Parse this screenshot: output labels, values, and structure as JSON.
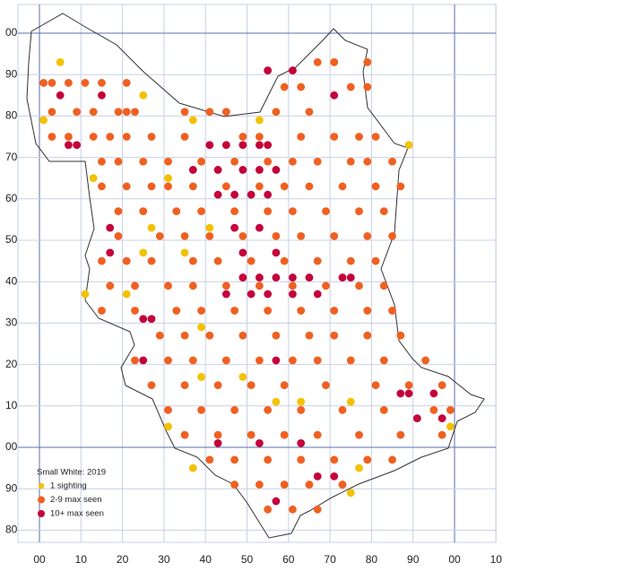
{
  "chart_data": {
    "type": "scatter",
    "legend_title": "Small White:  2019",
    "xlim": [
      -5,
      110
    ],
    "ylim": [
      -23,
      108
    ],
    "xticks": [
      {
        "value": 0,
        "label": "00"
      },
      10,
      20,
      30,
      40,
      50,
      60,
      70,
      80,
      90,
      {
        "value": 100,
        "label": "00"
      },
      {
        "value": 110,
        "label": "10"
      }
    ],
    "yticks": [
      {
        "value": 100,
        "label": "00"
      },
      90,
      80,
      70,
      60,
      50,
      40,
      30,
      20,
      10,
      {
        "value": 0,
        "label": "00"
      },
      {
        "value": -10,
        "label": "90"
      },
      {
        "value": -20,
        "label": "80"
      }
    ],
    "grid": true,
    "series": [
      {
        "name": "1 sighting",
        "color": "#f2c200",
        "points": [
          [
            4,
            92
          ],
          [
            0,
            78
          ],
          [
            36,
            78
          ],
          [
            52,
            78
          ],
          [
            88,
            72
          ],
          [
            12,
            64
          ],
          [
            30,
            64
          ],
          [
            26,
            52
          ],
          [
            40,
            52
          ],
          [
            24,
            46
          ],
          [
            34,
            46
          ],
          [
            10,
            36
          ],
          [
            20,
            36
          ],
          [
            38,
            28
          ],
          [
            38,
            16
          ],
          [
            48,
            16
          ],
          [
            56,
            10
          ],
          [
            62,
            10
          ],
          [
            74,
            10
          ],
          [
            30,
            4
          ],
          [
            98,
            4
          ],
          [
            36,
            -6
          ],
          [
            76,
            -6
          ],
          [
            74,
            -12
          ],
          [
            70,
            92
          ],
          [
            24,
            84
          ]
        ]
      },
      {
        "name": "2-9 max seen",
        "color": "#f06020",
        "points": [
          [
            0,
            87
          ],
          [
            2,
            87
          ],
          [
            6,
            87
          ],
          [
            10,
            87
          ],
          [
            14,
            87
          ],
          [
            20,
            87
          ],
          [
            2,
            80
          ],
          [
            8,
            80
          ],
          [
            12,
            80
          ],
          [
            18,
            80
          ],
          [
            20,
            80
          ],
          [
            22,
            80
          ],
          [
            34,
            80
          ],
          [
            40,
            80
          ],
          [
            44,
            80
          ],
          [
            56,
            80
          ],
          [
            64,
            80
          ],
          [
            2,
            74
          ],
          [
            6,
            74
          ],
          [
            12,
            74
          ],
          [
            16,
            74
          ],
          [
            20,
            74
          ],
          [
            26,
            74
          ],
          [
            34,
            74
          ],
          [
            48,
            74
          ],
          [
            52,
            74
          ],
          [
            62,
            74
          ],
          [
            70,
            74
          ],
          [
            76,
            74
          ],
          [
            80,
            74
          ],
          [
            14,
            68
          ],
          [
            18,
            68
          ],
          [
            24,
            68
          ],
          [
            30,
            68
          ],
          [
            38,
            68
          ],
          [
            46,
            68
          ],
          [
            54,
            68
          ],
          [
            60,
            68
          ],
          [
            66,
            68
          ],
          [
            74,
            68
          ],
          [
            78,
            68
          ],
          [
            84,
            68
          ],
          [
            14,
            62
          ],
          [
            20,
            62
          ],
          [
            26,
            62
          ],
          [
            30,
            62
          ],
          [
            36,
            62
          ],
          [
            44,
            62
          ],
          [
            52,
            62
          ],
          [
            58,
            62
          ],
          [
            64,
            62
          ],
          [
            72,
            62
          ],
          [
            80,
            62
          ],
          [
            86,
            62
          ],
          [
            18,
            56
          ],
          [
            24,
            56
          ],
          [
            32,
            56
          ],
          [
            38,
            56
          ],
          [
            46,
            56
          ],
          [
            54,
            56
          ],
          [
            60,
            56
          ],
          [
            68,
            56
          ],
          [
            76,
            56
          ],
          [
            82,
            56
          ],
          [
            18,
            50
          ],
          [
            28,
            50
          ],
          [
            34,
            50
          ],
          [
            40,
            50
          ],
          [
            48,
            50
          ],
          [
            56,
            50
          ],
          [
            62,
            50
          ],
          [
            70,
            50
          ],
          [
            78,
            50
          ],
          [
            84,
            50
          ],
          [
            14,
            44
          ],
          [
            20,
            44
          ],
          [
            26,
            44
          ],
          [
            36,
            44
          ],
          [
            42,
            44
          ],
          [
            50,
            44
          ],
          [
            58,
            44
          ],
          [
            66,
            44
          ],
          [
            74,
            44
          ],
          [
            80,
            44
          ],
          [
            16,
            38
          ],
          [
            22,
            38
          ],
          [
            30,
            38
          ],
          [
            36,
            38
          ],
          [
            44,
            38
          ],
          [
            52,
            38
          ],
          [
            60,
            38
          ],
          [
            68,
            38
          ],
          [
            76,
            38
          ],
          [
            82,
            38
          ],
          [
            14,
            32
          ],
          [
            22,
            32
          ],
          [
            32,
            32
          ],
          [
            38,
            32
          ],
          [
            46,
            32
          ],
          [
            54,
            32
          ],
          [
            62,
            32
          ],
          [
            70,
            32
          ],
          [
            78,
            32
          ],
          [
            84,
            32
          ],
          [
            28,
            26
          ],
          [
            34,
            26
          ],
          [
            40,
            26
          ],
          [
            48,
            26
          ],
          [
            56,
            26
          ],
          [
            64,
            26
          ],
          [
            70,
            26
          ],
          [
            78,
            26
          ],
          [
            86,
            26
          ],
          [
            22,
            20
          ],
          [
            30,
            20
          ],
          [
            36,
            20
          ],
          [
            44,
            20
          ],
          [
            52,
            20
          ],
          [
            60,
            20
          ],
          [
            66,
            20
          ],
          [
            74,
            20
          ],
          [
            82,
            20
          ],
          [
            92,
            20
          ],
          [
            26,
            14
          ],
          [
            34,
            14
          ],
          [
            42,
            14
          ],
          [
            50,
            14
          ],
          [
            58,
            14
          ],
          [
            68,
            14
          ],
          [
            80,
            14
          ],
          [
            88,
            14
          ],
          [
            96,
            14
          ],
          [
            30,
            8
          ],
          [
            38,
            8
          ],
          [
            46,
            8
          ],
          [
            54,
            8
          ],
          [
            62,
            8
          ],
          [
            72,
            8
          ],
          [
            82,
            8
          ],
          [
            94,
            8
          ],
          [
            98,
            8
          ],
          [
            34,
            2
          ],
          [
            42,
            2
          ],
          [
            50,
            2
          ],
          [
            58,
            2
          ],
          [
            66,
            2
          ],
          [
            76,
            2
          ],
          [
            86,
            2
          ],
          [
            96,
            2
          ],
          [
            40,
            -4
          ],
          [
            46,
            -4
          ],
          [
            54,
            -4
          ],
          [
            62,
            -4
          ],
          [
            70,
            -4
          ],
          [
            78,
            -4
          ],
          [
            84,
            -4
          ],
          [
            46,
            -10
          ],
          [
            52,
            -10
          ],
          [
            58,
            -10
          ],
          [
            64,
            -10
          ],
          [
            72,
            -10
          ],
          [
            54,
            -16
          ],
          [
            60,
            -16
          ],
          [
            66,
            -16
          ],
          [
            66,
            92
          ],
          [
            70,
            92
          ],
          [
            78,
            92
          ],
          [
            58,
            86
          ],
          [
            62,
            86
          ],
          [
            74,
            86
          ],
          [
            78,
            86
          ]
        ]
      },
      {
        "name": "10+ max seen",
        "color": "#c4003a",
        "points": [
          [
            4,
            84
          ],
          [
            14,
            84
          ],
          [
            6,
            72
          ],
          [
            8,
            72
          ],
          [
            40,
            72
          ],
          [
            44,
            72
          ],
          [
            48,
            72
          ],
          [
            52,
            72
          ],
          [
            54,
            72
          ],
          [
            36,
            66
          ],
          [
            42,
            66
          ],
          [
            48,
            66
          ],
          [
            52,
            66
          ],
          [
            56,
            66
          ],
          [
            42,
            60
          ],
          [
            46,
            60
          ],
          [
            50,
            60
          ],
          [
            54,
            60
          ],
          [
            16,
            52
          ],
          [
            46,
            52
          ],
          [
            52,
            52
          ],
          [
            16,
            46
          ],
          [
            48,
            46
          ],
          [
            56,
            46
          ],
          [
            48,
            40
          ],
          [
            52,
            40
          ],
          [
            56,
            40
          ],
          [
            60,
            40
          ],
          [
            64,
            40
          ],
          [
            72,
            40
          ],
          [
            74,
            40
          ],
          [
            44,
            36
          ],
          [
            50,
            36
          ],
          [
            54,
            36
          ],
          [
            60,
            36
          ],
          [
            66,
            36
          ],
          [
            24,
            30
          ],
          [
            26,
            30
          ],
          [
            24,
            20
          ],
          [
            56,
            20
          ],
          [
            94,
            12
          ],
          [
            88,
            12
          ],
          [
            86,
            12
          ],
          [
            90,
            6
          ],
          [
            96,
            6
          ],
          [
            42,
            0
          ],
          [
            52,
            0
          ],
          [
            62,
            0
          ],
          [
            66,
            -8
          ],
          [
            70,
            -8
          ],
          [
            56,
            -14
          ],
          [
            54,
            90
          ],
          [
            60,
            90
          ],
          [
            70,
            84
          ]
        ]
      }
    ]
  }
}
